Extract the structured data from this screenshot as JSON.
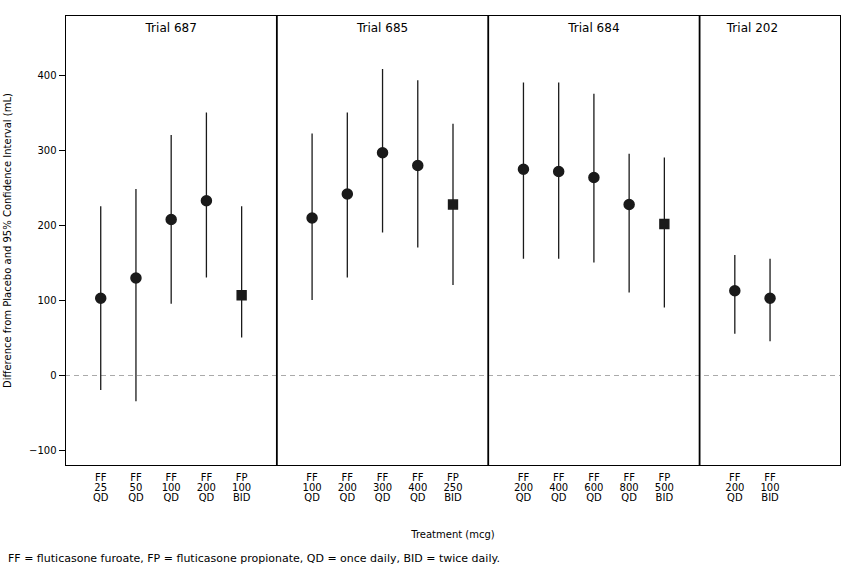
{
  "chart_data": {
    "type": "errorbar",
    "xlabel": "Treatment (mcg)",
    "ylabel": "Difference from Placebo and 95% Confidence Interval (mL)",
    "footnote": "FF = fluticasone furoate, FP = fluticasone propionate, QD = once daily, BID = twice daily.",
    "ylim": [
      -120,
      480
    ],
    "yticks": [
      -100,
      0,
      100,
      200,
      300,
      400
    ],
    "grid": false,
    "color": "#1a1a1a",
    "reference_line": 0,
    "groups": [
      {
        "name": "Trial 687",
        "categories": [
          "FF\n25\nQD",
          "FF\n50\nQD",
          "FF\n100\nQD",
          "FF\n200\nQD",
          "FP\n100\nBID"
        ],
        "values": [
          103,
          130,
          208,
          233,
          107
        ],
        "ci_low": [
          -20,
          -35,
          95,
          130,
          50
        ],
        "ci_high": [
          225,
          248,
          320,
          350,
          225
        ],
        "markers": [
          "circle",
          "circle",
          "circle",
          "circle",
          "square"
        ]
      },
      {
        "name": "Trial 685",
        "categories": [
          "FF\n100\nQD",
          "FF\n200\nQD",
          "FF\n300\nQD",
          "FF\n400\nQD",
          "FP\n250\nBID"
        ],
        "values": [
          210,
          242,
          297,
          280,
          228
        ],
        "ci_low": [
          100,
          130,
          190,
          170,
          120
        ],
        "ci_high": [
          322,
          350,
          408,
          393,
          335
        ],
        "markers": [
          "circle",
          "circle",
          "circle",
          "circle",
          "square"
        ]
      },
      {
        "name": "Trial 684",
        "categories": [
          "FF\n200\nQD",
          "FF\n400\nQD",
          "FF\n600\nQD",
          "FF\n800\nQD",
          "FP\n500\nBID"
        ],
        "values": [
          275,
          272,
          264,
          228,
          202
        ],
        "ci_low": [
          155,
          155,
          150,
          110,
          90
        ],
        "ci_high": [
          390,
          390,
          375,
          295,
          290
        ],
        "markers": [
          "circle",
          "circle",
          "circle",
          "circle",
          "square"
        ]
      },
      {
        "name": "Trial 202",
        "categories": [
          "FF\n200\nQD",
          "FF\n100\nBID"
        ],
        "values": [
          113,
          103
        ],
        "ci_low": [
          55,
          45
        ],
        "ci_high": [
          160,
          155
        ],
        "markers": [
          "circle",
          "circle"
        ]
      }
    ]
  }
}
